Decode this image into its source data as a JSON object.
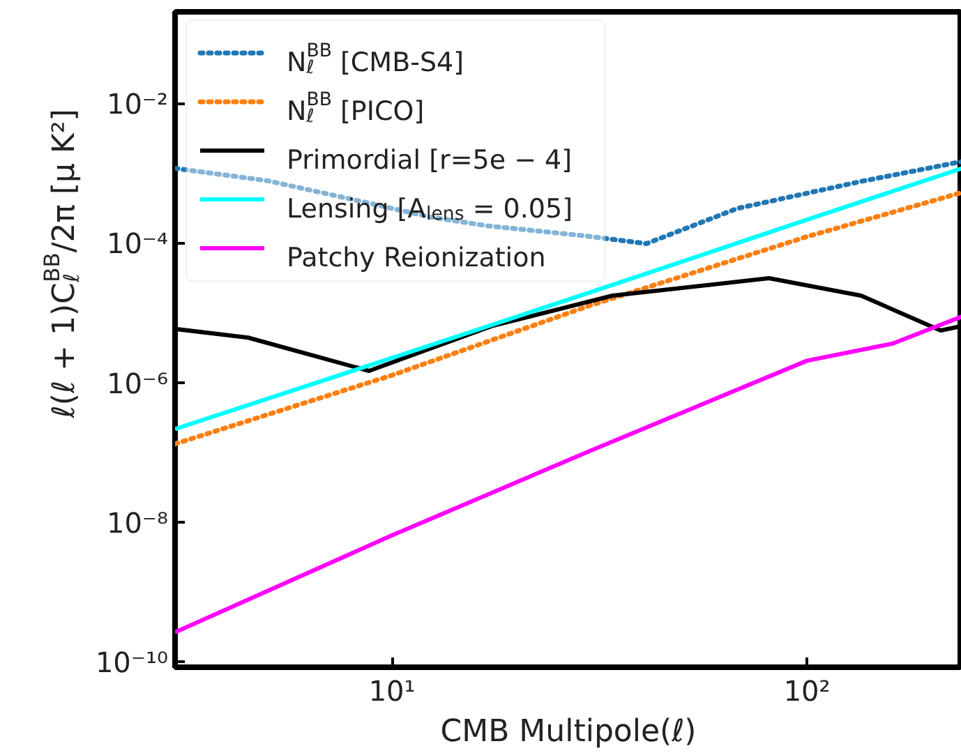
{
  "chart_data": {
    "type": "line",
    "xlabel": "CMB Multipole(ℓ)",
    "ylabel": "ℓ(ℓ + 1)C$_{ℓ}$$^{BB}$/2π [μ K²]",
    "log": "xy",
    "xlim": [
      3,
      236
    ],
    "ylim": [
      8.5e-11,
      0.21
    ],
    "xticks": [
      {
        "value": 10,
        "label": "10¹"
      },
      {
        "value": 100,
        "label": "10²"
      }
    ],
    "yticks": [
      {
        "value": 1e-10,
        "label": "10⁻¹⁰"
      },
      {
        "value": 1e-08,
        "label": "10⁻⁸"
      },
      {
        "value": 1e-06,
        "label": "10⁻⁶"
      },
      {
        "value": 0.0001,
        "label": "10⁻⁴"
      },
      {
        "value": 0.01,
        "label": "10⁻²"
      }
    ],
    "grid": false,
    "legend": "top left",
    "marker": "none",
    "series": [
      {
        "name": "N$_{ℓ}$$^{BB}$ [CMB-S4]",
        "color": "#1f77b4",
        "line_style": "dotted",
        "x": [
          3,
          5,
          7.9,
          12.4,
          17,
          29,
          41,
          68,
          135,
          236
        ],
        "values": [
          0.0012,
          0.0008,
          0.00044,
          0.00024,
          0.00018,
          0.00013,
          0.0001,
          0.00032,
          0.00078,
          0.0015
        ]
      },
      {
        "name": "N$_{ℓ}$$^{BB}$ [PICO]",
        "color": "#ff7f0e",
        "line_style": "dotted",
        "x": [
          3,
          10,
          30,
          100,
          236
        ],
        "values": [
          1.35e-07,
          1.3e-06,
          1.3e-05,
          0.000126,
          0.00054
        ]
      },
      {
        "name": "Primordial [r=5e − 4]",
        "color": "#000000",
        "line_style": "solid",
        "x": [
          3,
          4.5,
          8.8,
          17.4,
          34,
          81,
          135,
          210,
          236
        ],
        "values": [
          6e-06,
          4.5e-06,
          1.5e-06,
          6.6e-06,
          1.8e-05,
          3.2e-05,
          1.8e-05,
          5.7e-06,
          6.6e-06
        ]
      },
      {
        "name": "Lensing [A$_{lens}$ = 0.05]",
        "color": "#00ffff",
        "line_style": "solid",
        "x": [
          3,
          10,
          30,
          100,
          236
        ],
        "values": [
          2.2e-07,
          2.3e-06,
          2e-05,
          0.00022,
          0.0012
        ]
      },
      {
        "name": "Patchy Reionization",
        "color": "#ff00ff",
        "line_style": "solid",
        "x": [
          3,
          10,
          30,
          100,
          161,
          236
        ],
        "values": [
          2.7e-10,
          6.6e-09,
          1.07e-07,
          2.1e-06,
          3.7e-06,
          9e-06
        ]
      }
    ]
  }
}
